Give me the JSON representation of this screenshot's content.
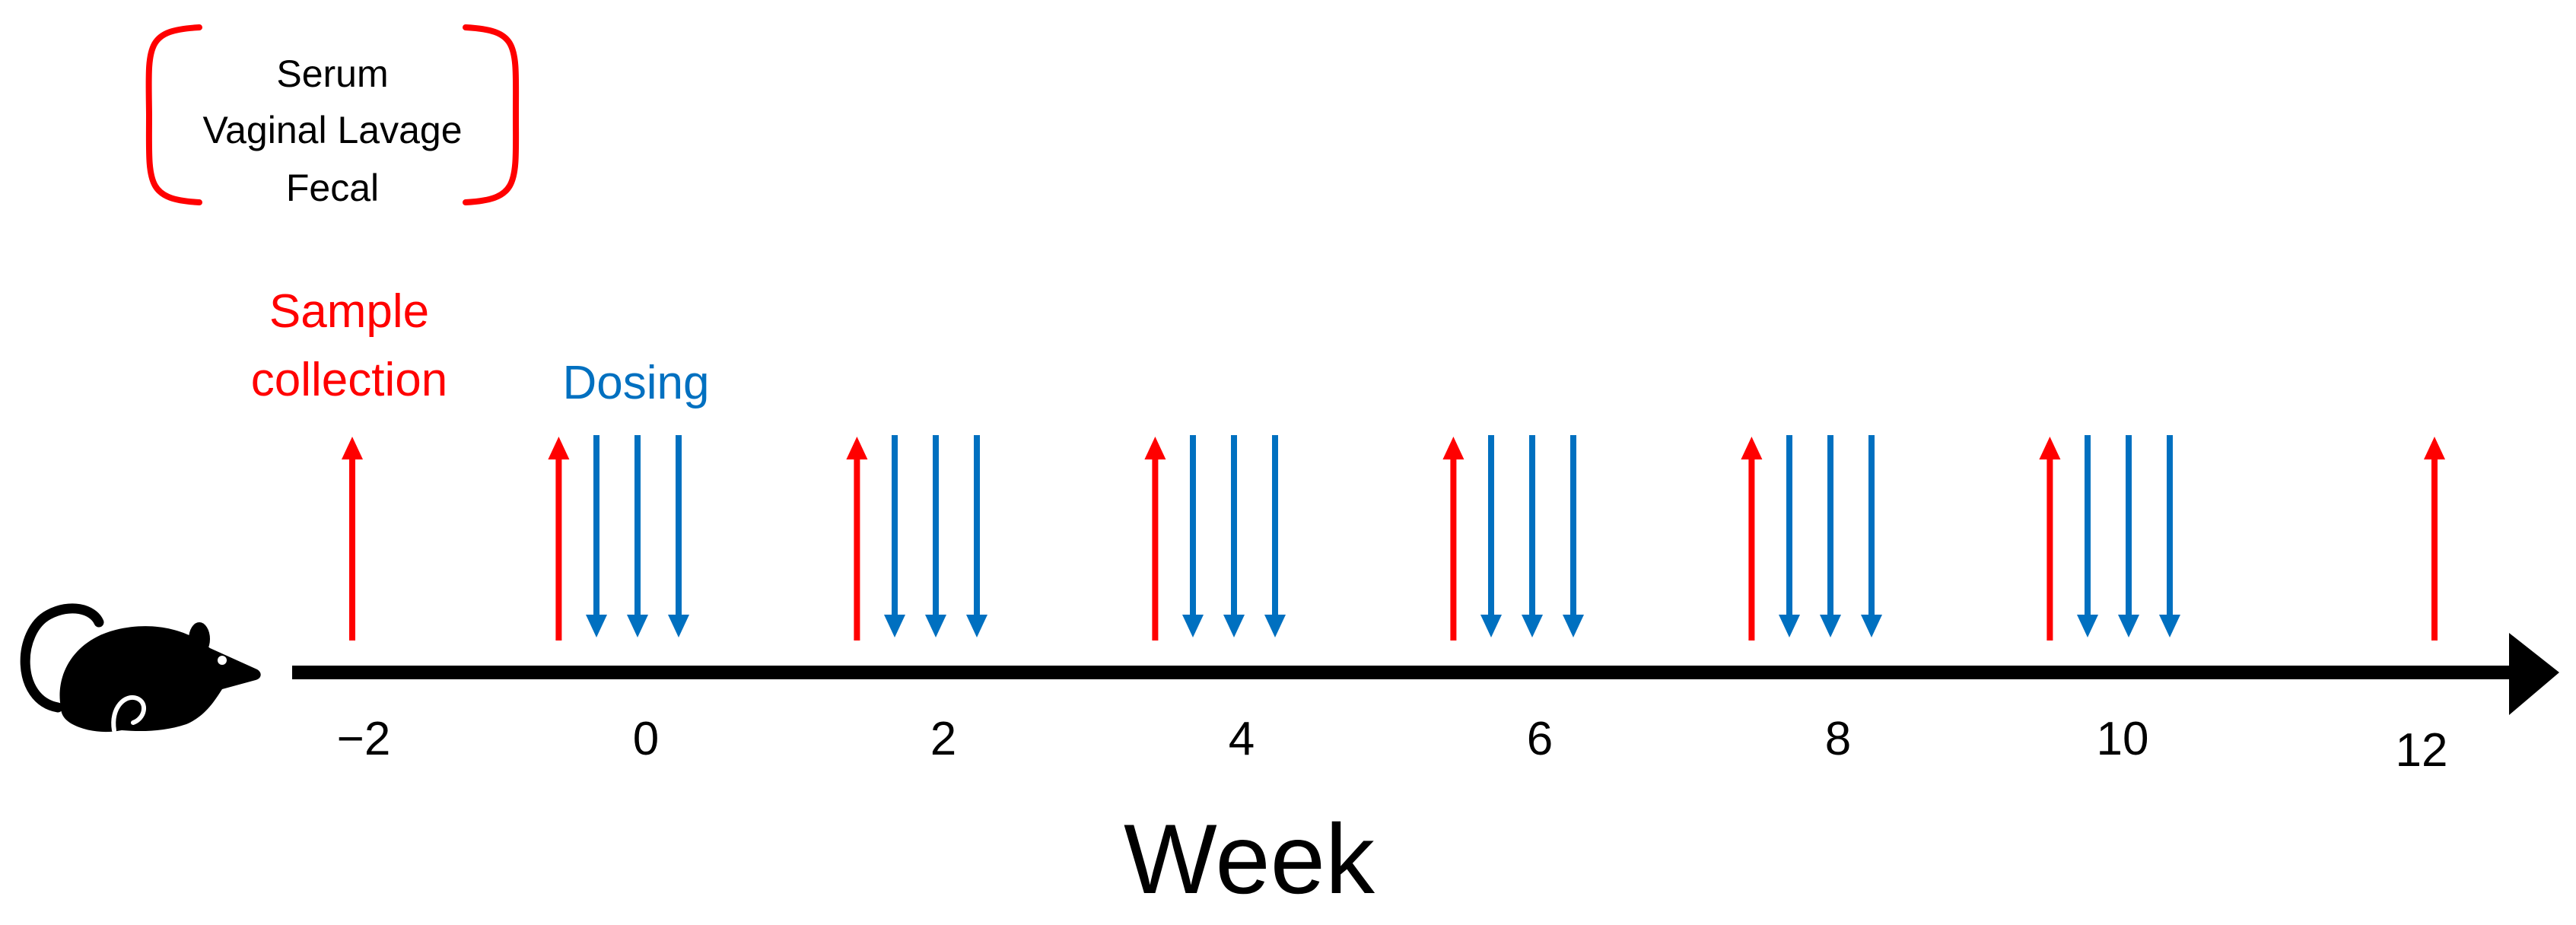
{
  "sample_types": [
    "Serum",
    "Vaginal Lavage",
    "Fecal"
  ],
  "legend": {
    "sample_collection_lines": [
      "Sample",
      "collection"
    ],
    "dosing": "Dosing"
  },
  "axis": {
    "title": "Week",
    "ticks": [
      "−2",
      "0",
      "2",
      "4",
      "6",
      "8",
      "10",
      "12"
    ]
  },
  "timeline": {
    "sample_collection_weeks": [
      -2,
      -0.6,
      1.4,
      3.4,
      5.4,
      7.4,
      9.4,
      12
    ],
    "dosing_groups": [
      {
        "week": 0,
        "doses": 3
      },
      {
        "week": 2,
        "doses": 3
      },
      {
        "week": 4,
        "doses": 3
      },
      {
        "week": 6,
        "doses": 3
      },
      {
        "week": 8,
        "doses": 3
      },
      {
        "week": 10,
        "doses": 3
      }
    ]
  },
  "colors": {
    "sample_collection": "#ff0000",
    "dosing": "#0070c0",
    "axis": "#000000",
    "text": "#000000"
  },
  "icons": {
    "animal": "mouse-icon"
  }
}
